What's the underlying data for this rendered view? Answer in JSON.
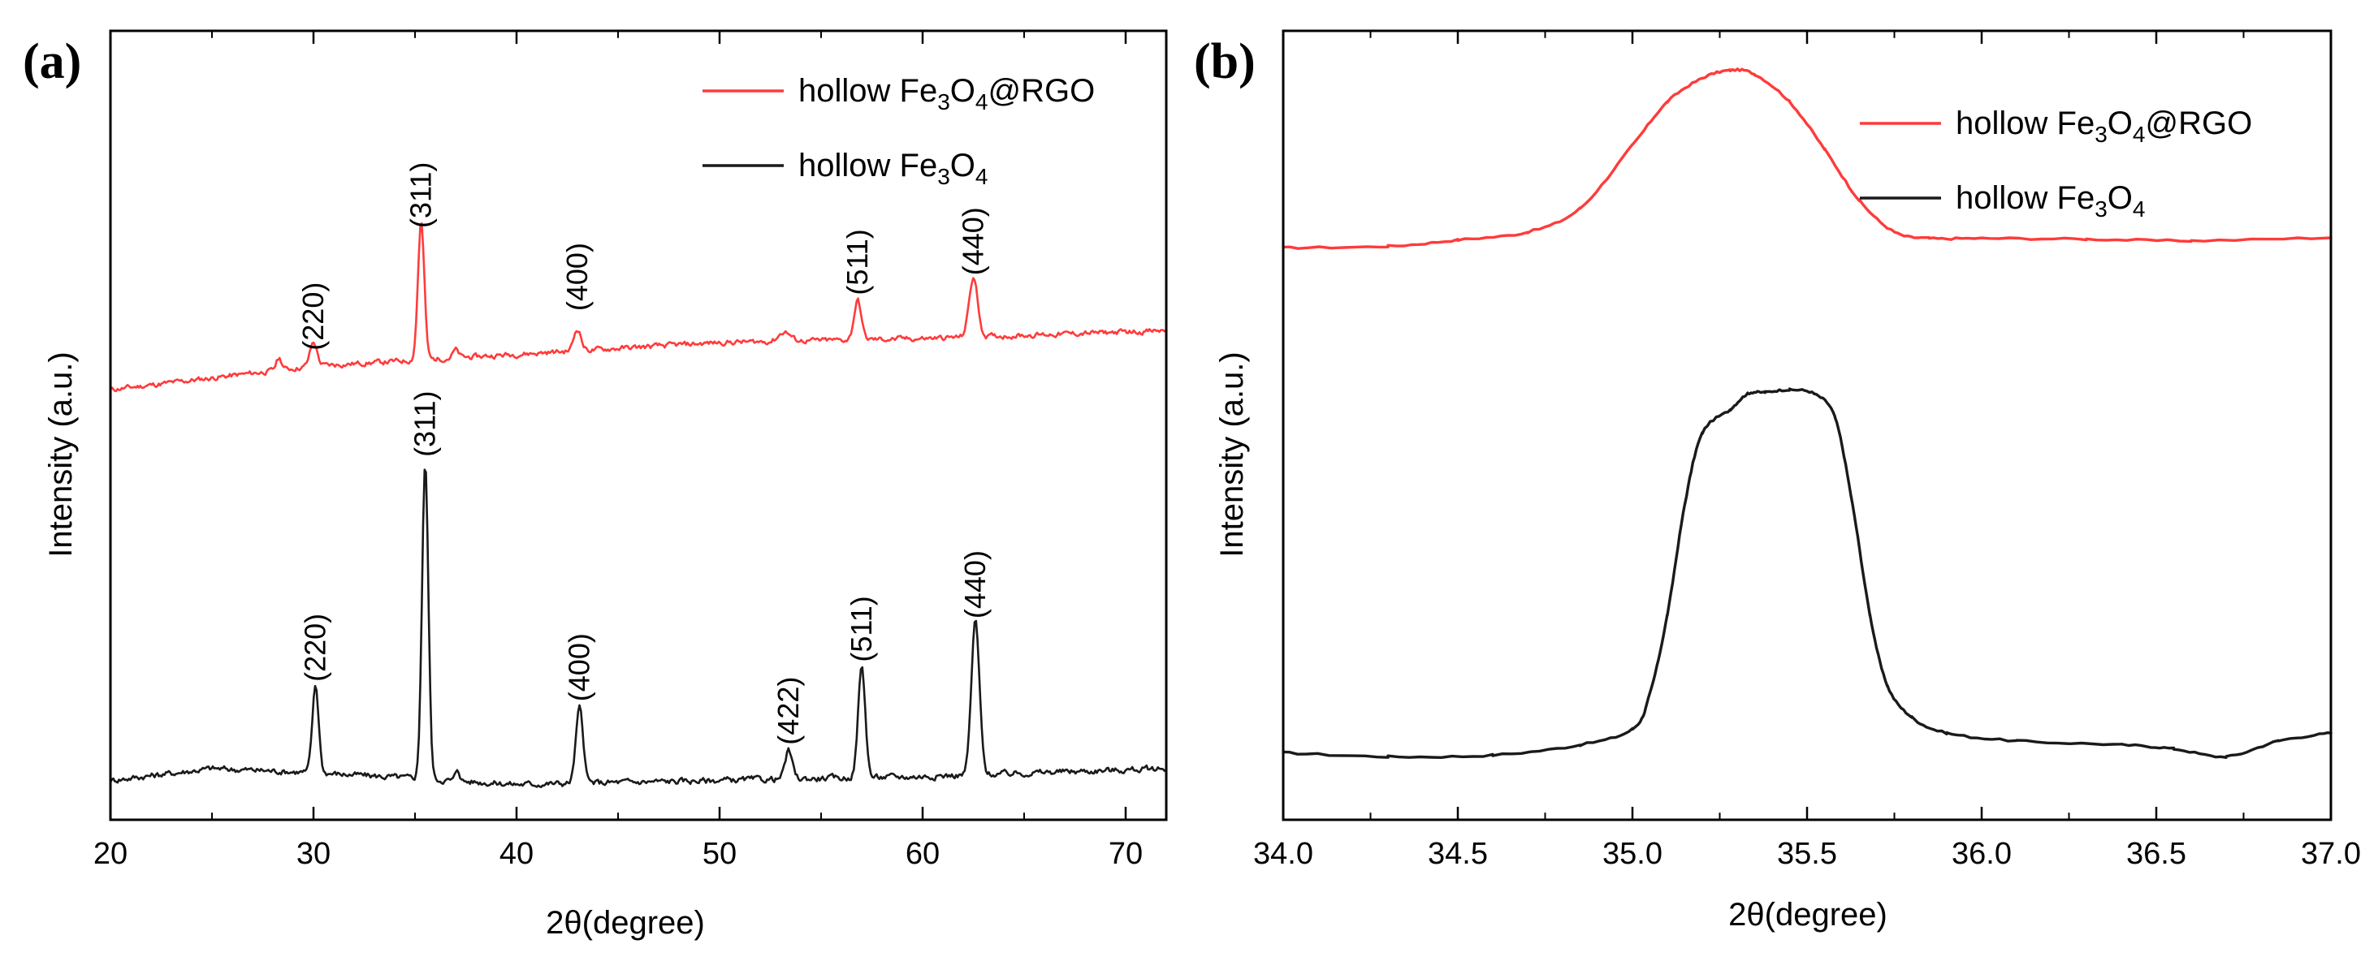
{
  "colors": {
    "red": "#ff3b3b",
    "black": "#1a1a1a"
  },
  "chart_data": [
    {
      "panel": "(a)",
      "type": "line",
      "xlabel": "2θ(degree)",
      "ylabel": "Intensity (a.u.)",
      "xlim": [
        20,
        72
      ],
      "ylim": [
        0,
        100
      ],
      "xticks": [
        20,
        30,
        40,
        50,
        60,
        70
      ],
      "xtick_labels": [
        "20",
        "30",
        "40",
        "50",
        "60",
        "70"
      ],
      "legend": {
        "position": "top-right",
        "entries": [
          {
            "prefix": "hollow Fe",
            "sub1": "3",
            "mid": "O",
            "sub2": "4",
            "suffix": "@RGO",
            "color": "#ff3b3b"
          },
          {
            "prefix": "hollow Fe",
            "sub1": "3",
            "mid": "O",
            "sub2": "4",
            "suffix": "",
            "color": "#1a1a1a"
          }
        ]
      },
      "series": [
        {
          "name": "hollow Fe3O4@RGO",
          "color": "#ff3b3b",
          "baseline": [
            [
              20,
              54.5
            ],
            [
              30,
              57.5
            ],
            [
              40,
              59
            ],
            [
              50,
              60.5
            ],
            [
              60,
              61
            ],
            [
              72,
              62
            ]
          ],
          "noise": 0.6,
          "peaks": [
            {
              "x": 28.3,
              "h": 1.5,
              "w": 0.2
            },
            {
              "x": 30.0,
              "h": 3.0,
              "w": 0.25
            },
            {
              "x": 35.3,
              "h": 17.5,
              "w": 0.22
            },
            {
              "x": 37.0,
              "h": 1.0,
              "w": 0.2
            },
            {
              "x": 43.0,
              "h": 2.8,
              "w": 0.25
            },
            {
              "x": 53.2,
              "h": 1.2,
              "w": 0.4
            },
            {
              "x": 56.8,
              "h": 5.0,
              "w": 0.25
            },
            {
              "x": 62.5,
              "h": 7.5,
              "w": 0.3
            }
          ]
        },
        {
          "name": "hollow Fe3O4",
          "color": "#1a1a1a",
          "baseline": [
            [
              20,
              5
            ],
            [
              25,
              6.5
            ],
            [
              30,
              6
            ],
            [
              40,
              4.5
            ],
            [
              50,
              5
            ],
            [
              60,
              5.5
            ],
            [
              72,
              6.5
            ]
          ],
          "noise": 0.7,
          "peaks": [
            {
              "x": 30.1,
              "h": 11,
              "w": 0.22
            },
            {
              "x": 35.5,
              "h": 40,
              "w": 0.22
            },
            {
              "x": 37.1,
              "h": 1.5,
              "w": 0.15
            },
            {
              "x": 43.1,
              "h": 9.5,
              "w": 0.25
            },
            {
              "x": 53.4,
              "h": 3.5,
              "w": 0.25
            },
            {
              "x": 57.0,
              "h": 14,
              "w": 0.25
            },
            {
              "x": 62.6,
              "h": 19.5,
              "w": 0.28
            }
          ]
        }
      ],
      "annotations": [
        {
          "text": "(220)",
          "x": 30.0,
          "y": 59.5
        },
        {
          "text": "(311)",
          "x": 35.3,
          "y": 75
        },
        {
          "text": "(400)",
          "x": 43.0,
          "y": 64.5
        },
        {
          "text": "(511)",
          "x": 56.8,
          "y": 66.5
        },
        {
          "text": "(440)",
          "x": 62.5,
          "y": 69
        },
        {
          "text": "(220)",
          "x": 30.1,
          "y": 17.5
        },
        {
          "text": "(311)",
          "x": 35.5,
          "y": 46
        },
        {
          "text": "(400)",
          "x": 43.1,
          "y": 15
        },
        {
          "text": "(422)",
          "x": 53.4,
          "y": 9.5
        },
        {
          "text": "(511)",
          "x": 57.0,
          "y": 20
        },
        {
          "text": "(440)",
          "x": 62.6,
          "y": 25.5
        }
      ]
    },
    {
      "panel": "(b)",
      "type": "line",
      "xlabel": "2θ(degree)",
      "ylabel": "Intensity (a.u.)",
      "xlim": [
        34.0,
        37.0
      ],
      "ylim": [
        0,
        100
      ],
      "xticks": [
        34.0,
        34.5,
        35.0,
        35.5,
        36.0,
        36.5,
        37.0
      ],
      "xtick_labels": [
        "34.0",
        "34.5",
        "35.0",
        "35.5",
        "36.0",
        "36.5",
        "37.0"
      ],
      "legend": {
        "position": "top-right",
        "entries": [
          {
            "prefix": "hollow Fe",
            "sub1": "3",
            "mid": "O",
            "sub2": "4",
            "suffix": "@RGO",
            "color": "#ff3b3b"
          },
          {
            "prefix": "hollow Fe",
            "sub1": "3",
            "mid": "O",
            "sub2": "4",
            "suffix": "",
            "color": "#1a1a1a"
          }
        ]
      },
      "series": [
        {
          "name": "hollow Fe3O4@RGO",
          "color": "#ff3b3b",
          "points": [
            [
              34.0,
              72.5
            ],
            [
              34.3,
              72.7
            ],
            [
              34.5,
              73.5
            ],
            [
              34.7,
              74.5
            ],
            [
              34.85,
              77.5
            ],
            [
              35.0,
              85.5
            ],
            [
              35.1,
              91
            ],
            [
              35.2,
              94
            ],
            [
              35.28,
              95
            ],
            [
              35.35,
              94.5
            ],
            [
              35.45,
              91
            ],
            [
              35.55,
              85
            ],
            [
              35.65,
              78.5
            ],
            [
              35.75,
              74.5
            ],
            [
              35.85,
              73.7
            ],
            [
              36.0,
              73.7
            ],
            [
              36.3,
              73.6
            ],
            [
              36.6,
              73.4
            ],
            [
              37.0,
              73.8
            ]
          ]
        },
        {
          "name": "hollow Fe3O4",
          "color": "#1a1a1a",
          "points": [
            [
              34.0,
              8.5
            ],
            [
              34.3,
              8.0
            ],
            [
              34.6,
              8.2
            ],
            [
              34.85,
              9.5
            ],
            [
              35.0,
              11.5
            ],
            [
              35.05,
              16
            ],
            [
              35.1,
              26
            ],
            [
              35.15,
              40
            ],
            [
              35.2,
              49
            ],
            [
              35.28,
              52
            ],
            [
              35.33,
              54
            ],
            [
              35.38,
              54.2
            ],
            [
              35.45,
              54.5
            ],
            [
              35.52,
              54
            ],
            [
              35.58,
              51
            ],
            [
              35.63,
              40
            ],
            [
              35.68,
              26
            ],
            [
              35.73,
              17
            ],
            [
              35.8,
              13
            ],
            [
              35.9,
              11
            ],
            [
              36.1,
              10
            ],
            [
              36.4,
              9.5
            ],
            [
              36.55,
              9.0
            ],
            [
              36.7,
              8.0
            ],
            [
              36.85,
              10.0
            ],
            [
              37.0,
              11.0
            ]
          ]
        }
      ]
    }
  ]
}
